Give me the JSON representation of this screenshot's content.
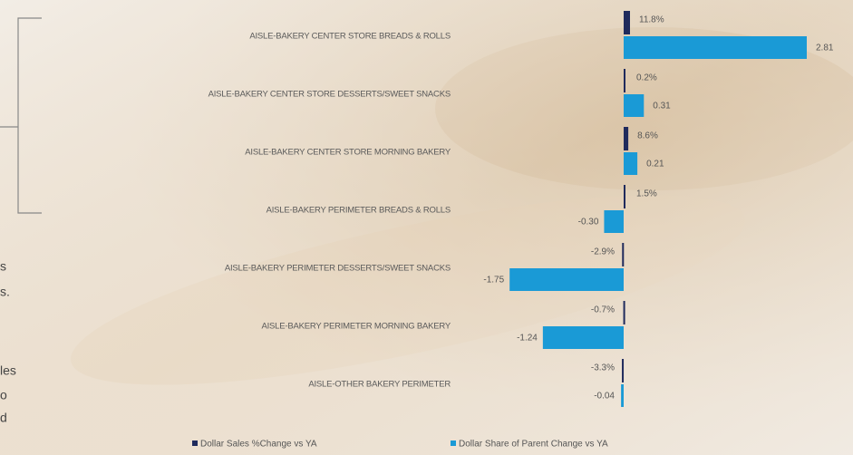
{
  "chart_data": {
    "type": "bar",
    "orientation": "horizontal",
    "categories": [
      "AISLE-BAKERY CENTER STORE BREADS & ROLLS",
      "AISLE-BAKERY CENTER STORE DESSERTS/SWEET SNACKS",
      "AISLE-BAKERY CENTER STORE MORNING BAKERY",
      "AISLE-BAKERY PERIMETER BREADS & ROLLS",
      "AISLE-BAKERY PERIMETER DESSERTS/SWEET SNACKS",
      "AISLE-BAKERY PERIMETER MORNING BAKERY",
      "AISLE-OTHER BAKERY PERIMETER"
    ],
    "series": [
      {
        "name": "Dollar Sales %Change vs YA",
        "color": "#1f2a5c",
        "values": [
          11.8,
          0.2,
          8.6,
          1.5,
          -2.9,
          -0.7,
          -3.3
        ],
        "value_labels": [
          "11.8%",
          "0.2%",
          "8.6%",
          "1.5%",
          "-2.9%",
          "-0.7%",
          "-3.3%"
        ]
      },
      {
        "name": "Dollar Share of Parent Change vs YA",
        "color": "#1a9ad6",
        "values": [
          2.81,
          0.31,
          0.21,
          -0.3,
          -1.75,
          -1.24,
          -0.04
        ],
        "value_labels": [
          "2.81",
          "0.31",
          "0.21",
          "-0.30",
          "-1.75",
          "-1.24",
          "-0.04"
        ]
      }
    ],
    "side_text": [
      "s",
      "s.",
      "les",
      "o",
      "d"
    ]
  }
}
